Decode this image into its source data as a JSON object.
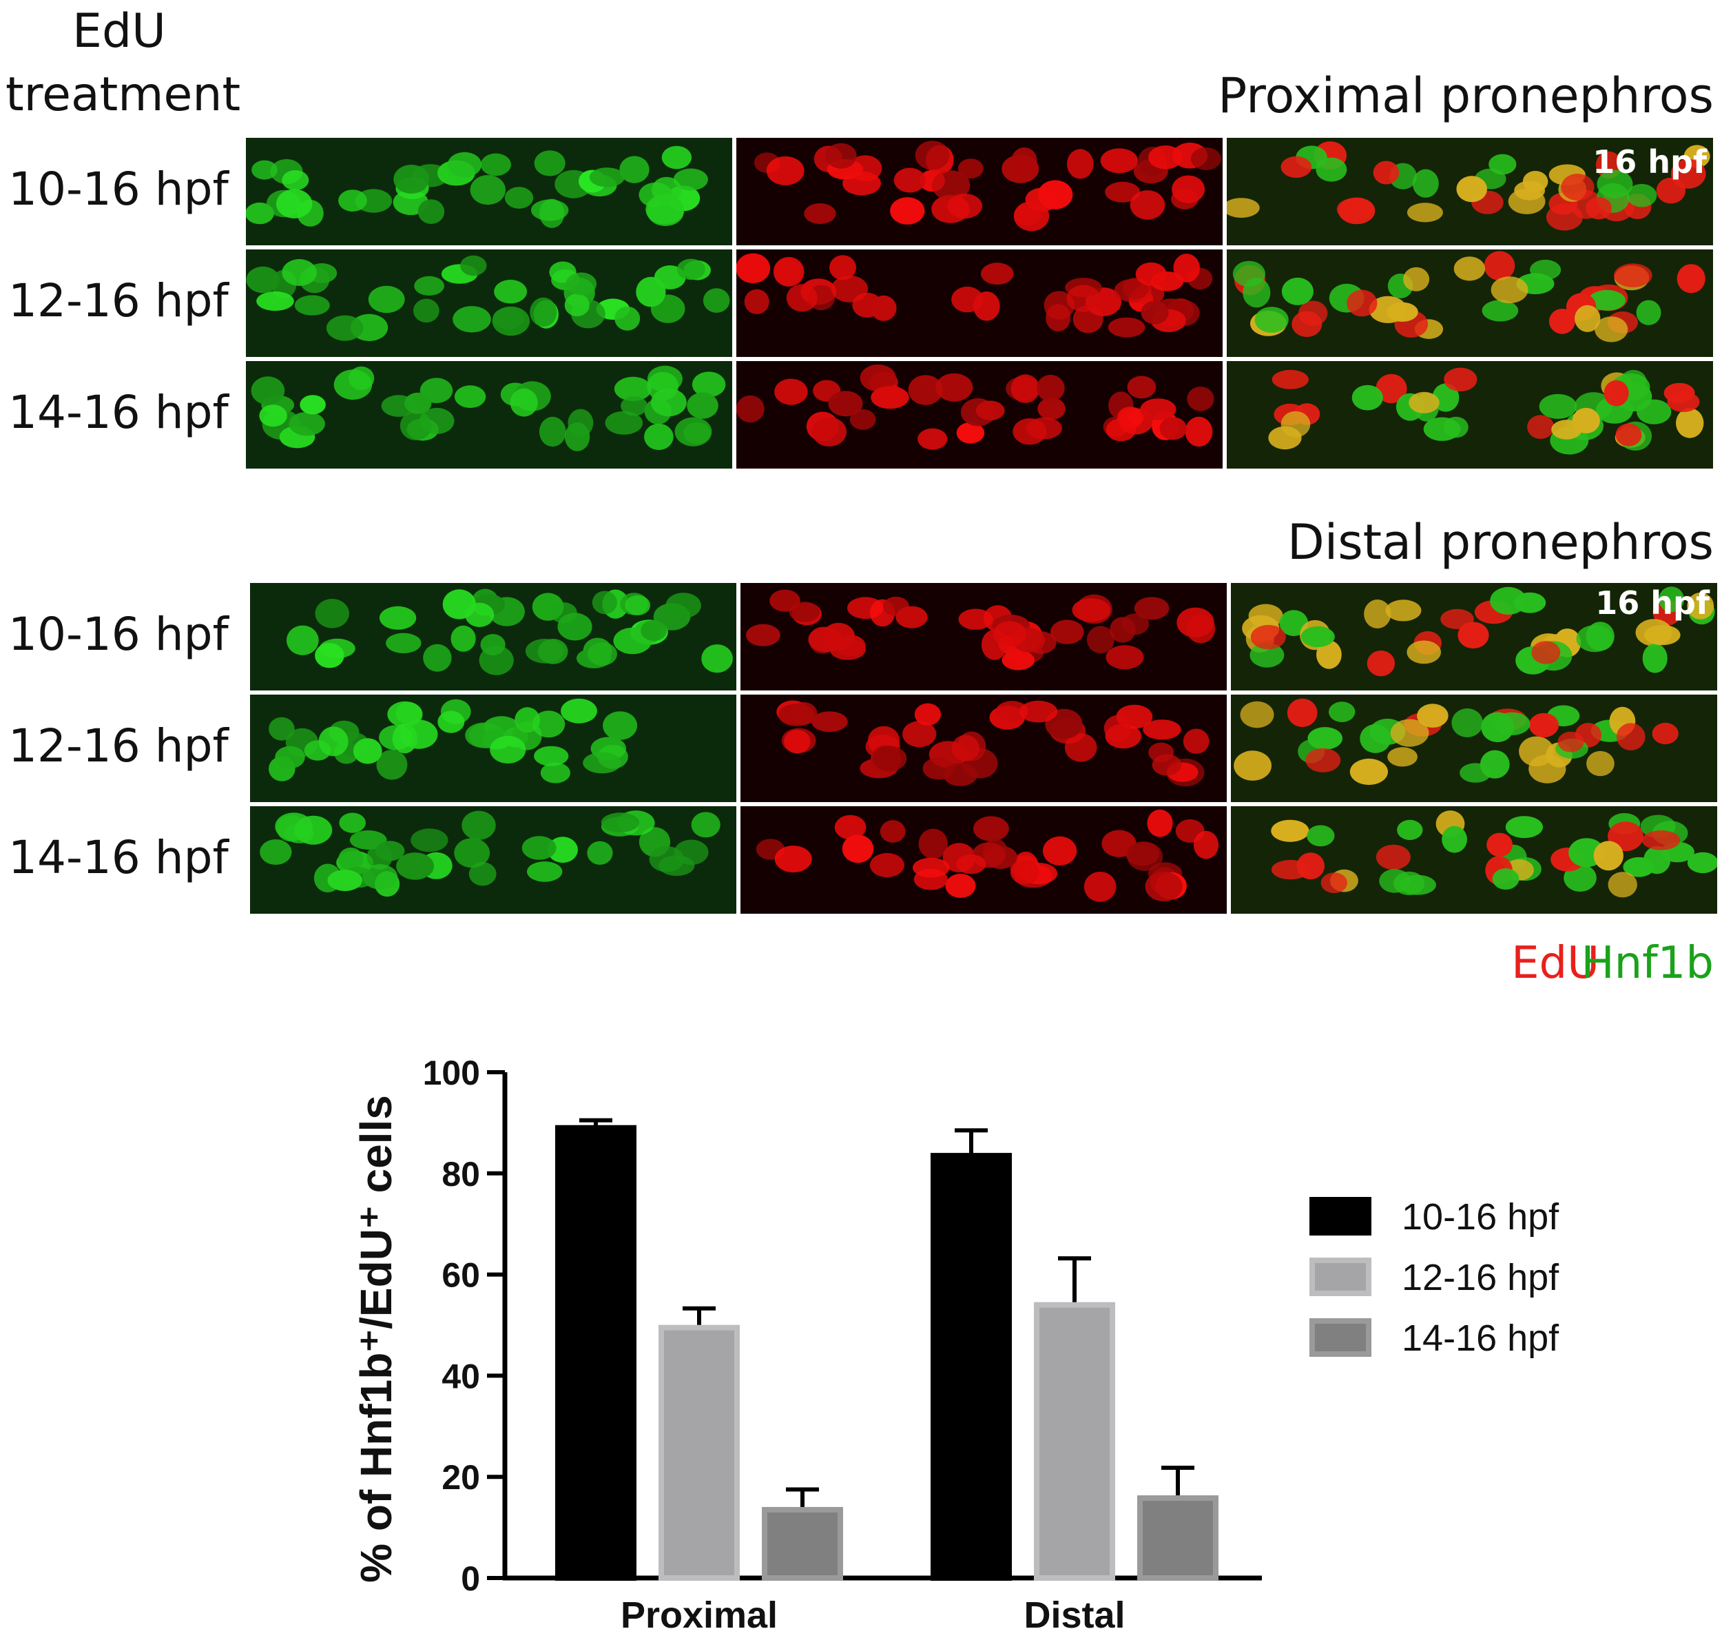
{
  "header": {
    "treatment_line1": "EdU",
    "treatment_line2": "treatment"
  },
  "sections": [
    {
      "title": "Proximal pronephros",
      "time_badge": "16 hpf",
      "rows": [
        "10-16 hpf",
        "12-16 hpf",
        "14-16 hpf"
      ]
    },
    {
      "title": "Distal pronephros",
      "time_badge": "16 hpf",
      "rows": [
        "10-16 hpf",
        "12-16 hpf",
        "14-16 hpf"
      ]
    }
  ],
  "channel_legend": {
    "edu": "EdU",
    "hnf1b": "Hnf1b",
    "edu_color": "#e8201c",
    "hnf1b_color": "#1aa21a"
  },
  "chart_data": {
    "type": "bar",
    "categories": [
      "Proximal",
      "Distal"
    ],
    "series": [
      {
        "name": "10-16 hpf",
        "values": [
          89,
          83.5
        ],
        "errors": [
          1.5,
          5
        ],
        "color": "#000000"
      },
      {
        "name": "12-16 hpf",
        "values": [
          49.5,
          54
        ],
        "errors": [
          3.8,
          9.2
        ],
        "color": "#a5a5a7"
      },
      {
        "name": "14-16 hpf",
        "values": [
          13.5,
          15.8
        ],
        "errors": [
          4,
          6
        ],
        "color": "#808080"
      }
    ],
    "ylabel": "% of Hnf1b⁺/EdU⁺ cells",
    "ylim": [
      0,
      100
    ],
    "yticks": [
      0,
      20,
      40,
      60,
      80,
      100
    ],
    "legend_position": "right"
  }
}
